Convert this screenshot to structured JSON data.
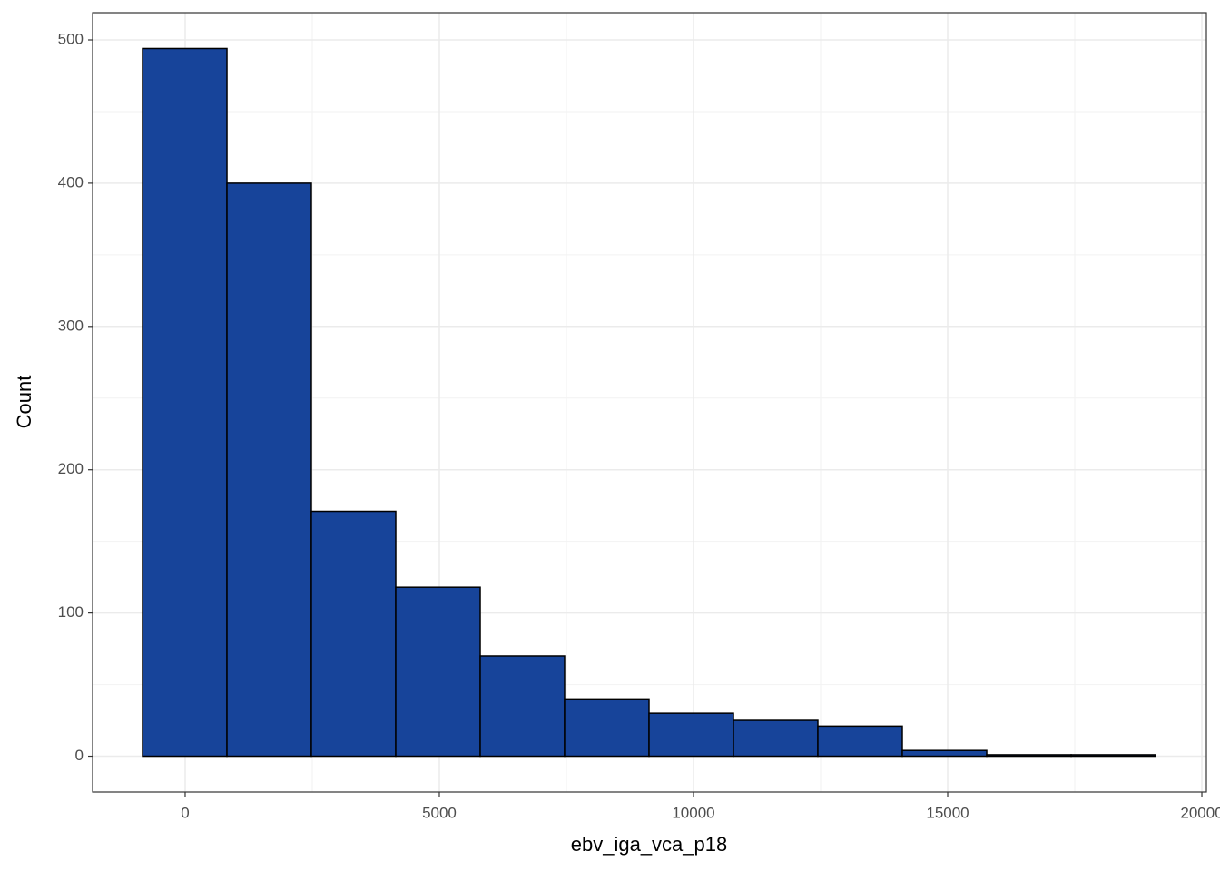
{
  "chart_data": {
    "type": "histogram",
    "x_label": "ebv_iga_vca_p18",
    "y_label": "Count",
    "bins": [
      -839,
      822,
      2482,
      4143,
      5804,
      7464,
      9125,
      10786,
      12446,
      14107,
      15768,
      17429,
      19089
    ],
    "values": [
      494,
      400,
      171,
      118,
      70,
      40,
      30,
      25,
      21,
      4,
      1,
      1
    ],
    "color": "#17449a",
    "edge_color": "#000000",
    "xlim": [
      -1821,
      20089
    ],
    "xticks": [
      0,
      5000,
      10000,
      15000,
      20000
    ],
    "ylim": [
      -25,
      519
    ],
    "yticks": [
      0,
      100,
      200,
      300,
      400,
      500
    ],
    "grid": true
  }
}
